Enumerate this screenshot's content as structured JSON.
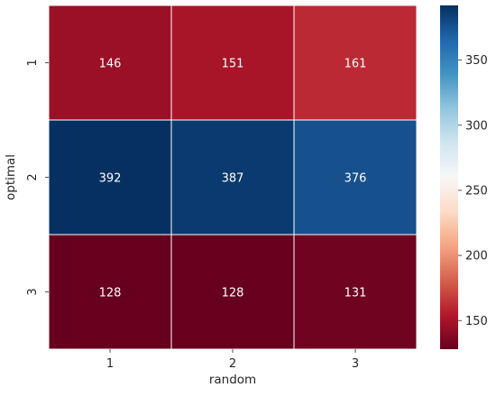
{
  "chart_data": {
    "type": "heatmap",
    "title": "",
    "xlabel": "random",
    "ylabel": "optimal",
    "x_categories": [
      "1",
      "2",
      "3"
    ],
    "y_categories": [
      "1",
      "2",
      "3"
    ],
    "values": [
      [
        146,
        151,
        161
      ],
      [
        392,
        387,
        376
      ],
      [
        128,
        128,
        131
      ]
    ],
    "colorbar": {
      "colormap": "RdBu",
      "vmin": 128,
      "vmax": 392,
      "ticks": [
        150,
        200,
        250,
        300,
        350
      ]
    },
    "annotations": true,
    "grid_lines": "white"
  }
}
